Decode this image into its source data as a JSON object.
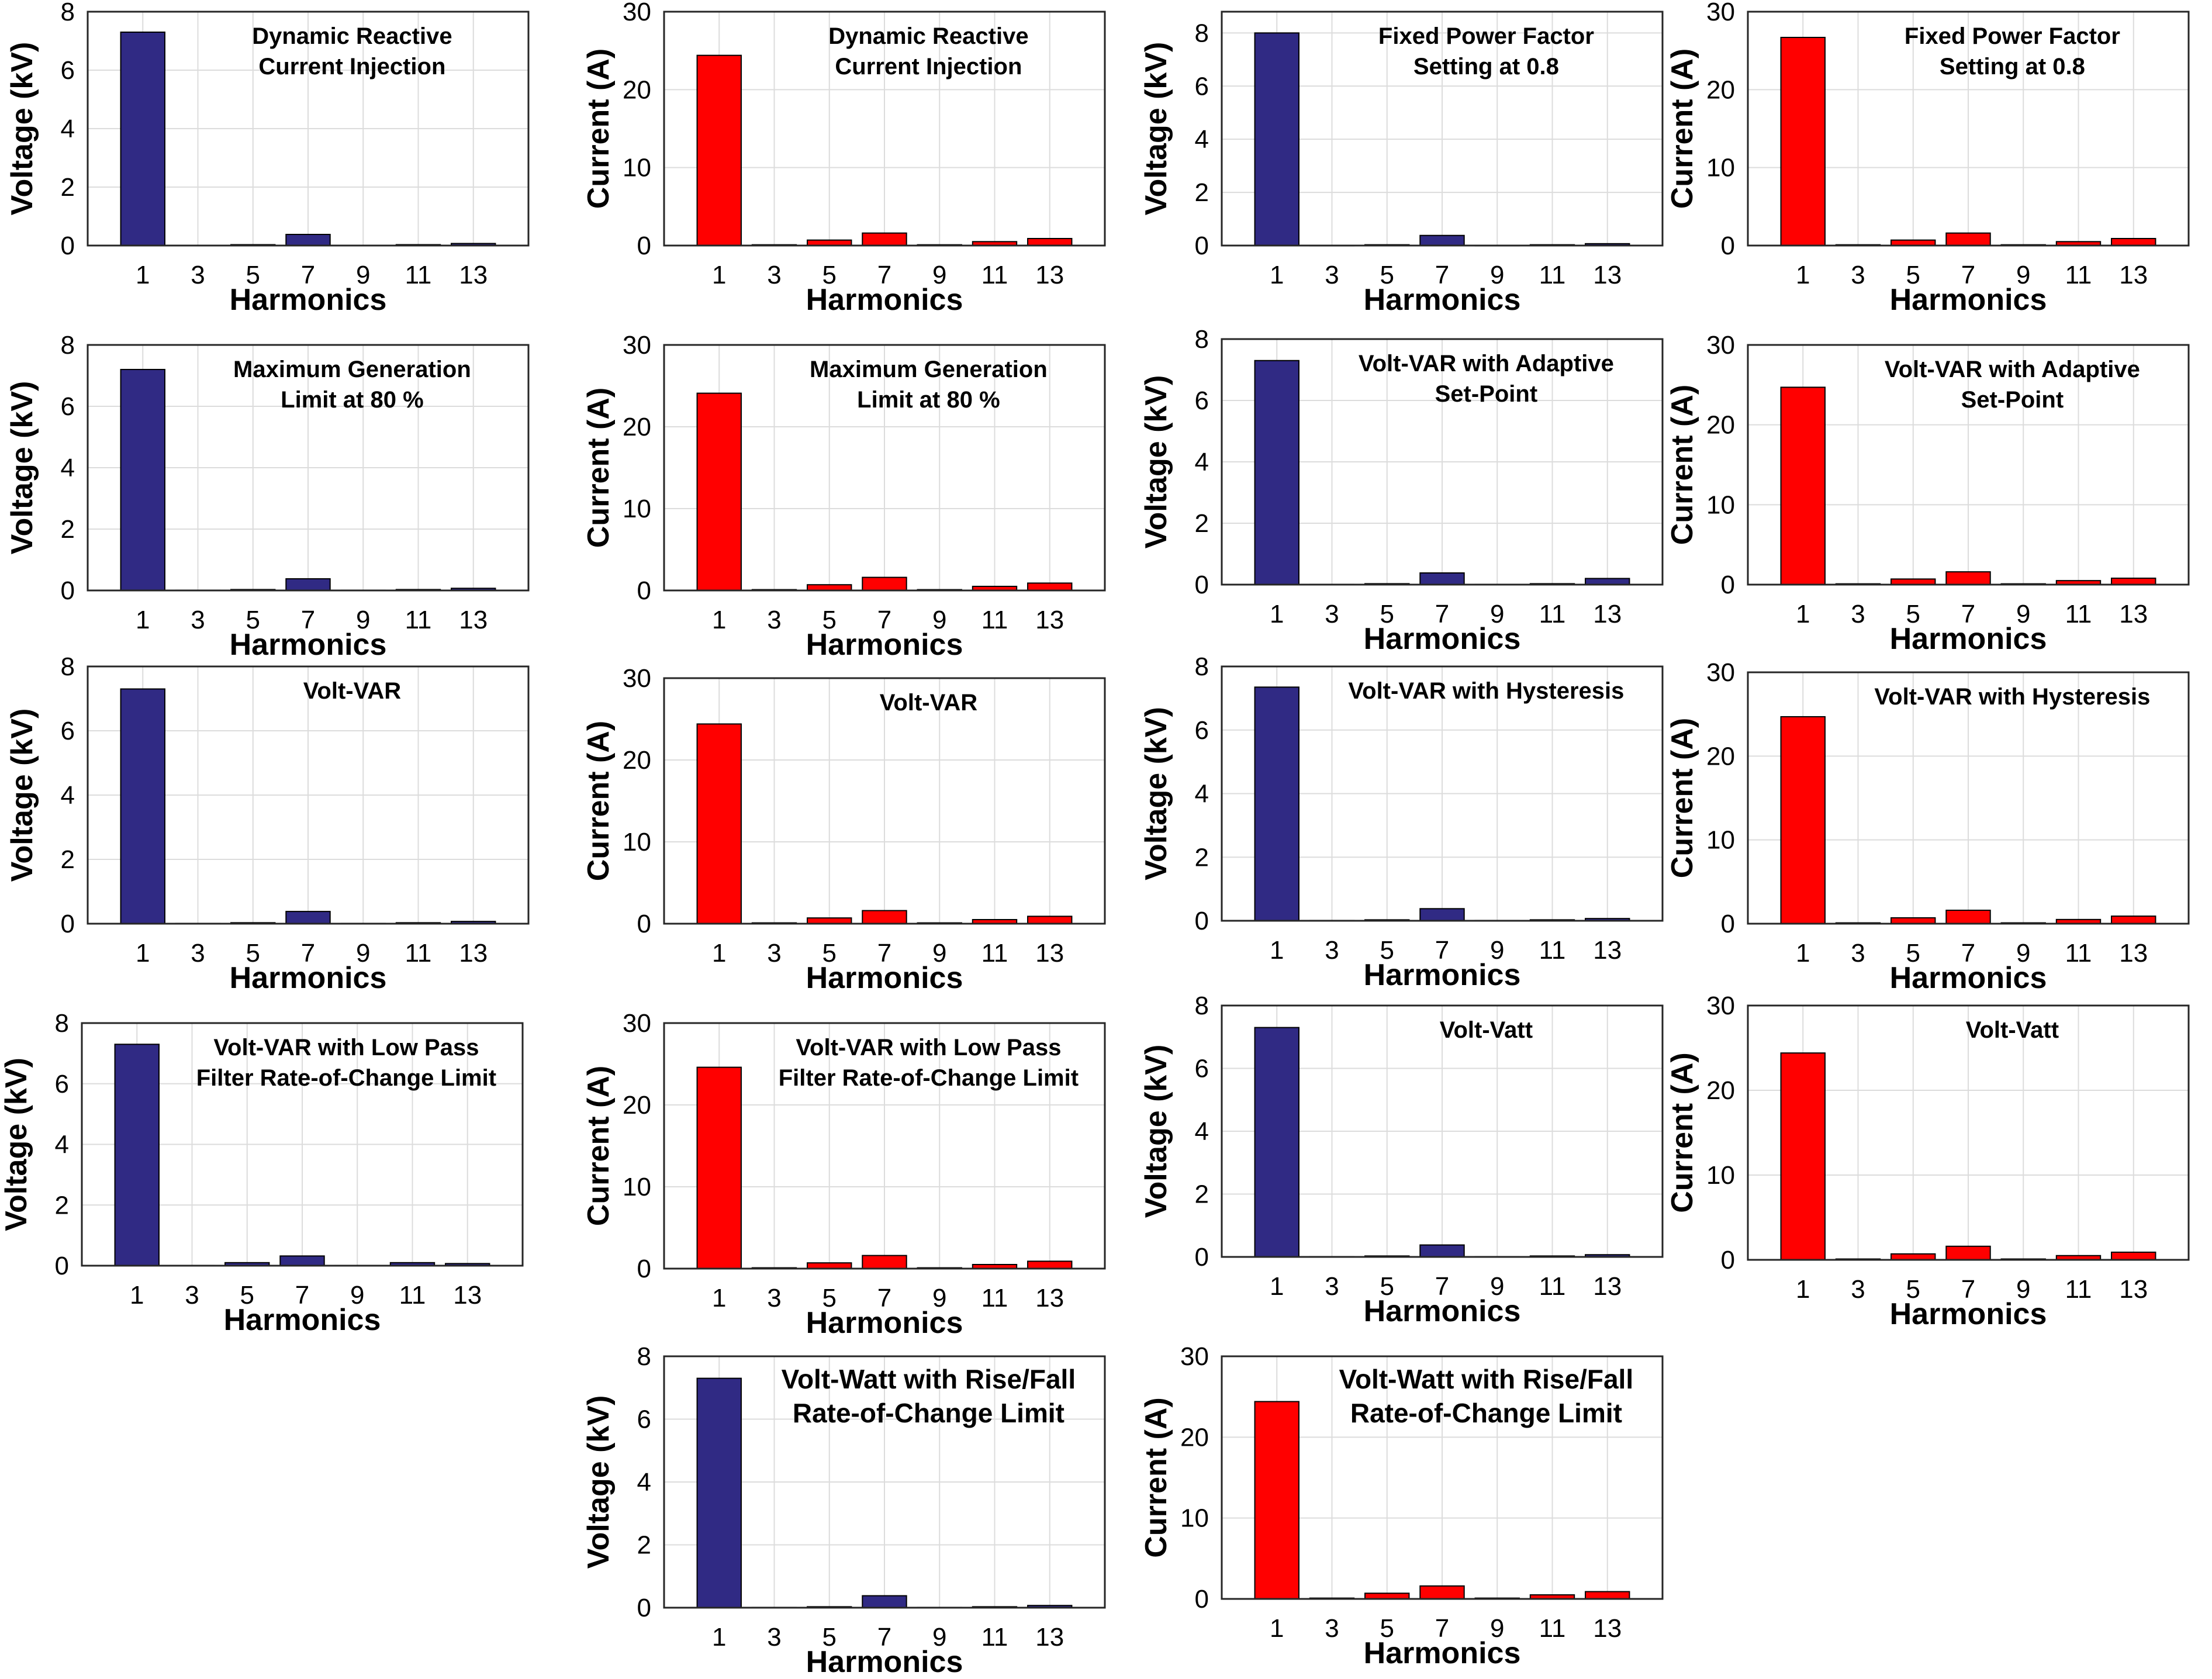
{
  "colors": {
    "voltage_bar": "#302A84",
    "current_bar": "#FF0000",
    "bar_edge": "#000000",
    "grid": "#dcdcdc",
    "axis": "#262626"
  },
  "chart_data": [
    {
      "type": "bar",
      "series_kind": "voltage",
      "title_lines": [
        "Dynamic Reactive",
        "Current Injection"
      ],
      "xlabel": "Harmonics",
      "ylabel": "Voltage (kV)",
      "categories": [
        "1",
        "3",
        "5",
        "7",
        "9",
        "11",
        "13"
      ],
      "values": [
        7.3,
        0.01,
        0.03,
        0.38,
        0.01,
        0.03,
        0.07
      ],
      "ylim": [
        0,
        8
      ],
      "yticks": [
        "0",
        "2",
        "4",
        "6",
        "8"
      ],
      "grid": true
    },
    {
      "type": "bar",
      "series_kind": "current",
      "title_lines": [
        "Dynamic Reactive",
        "Current Injection"
      ],
      "xlabel": "Harmonics",
      "ylabel": "Current (A)",
      "categories": [
        "1",
        "3",
        "5",
        "7",
        "9",
        "11",
        "13"
      ],
      "values": [
        24.4,
        0.1,
        0.7,
        1.6,
        0.1,
        0.5,
        0.9
      ],
      "ylim": [
        0,
        30
      ],
      "yticks": [
        "0",
        "10",
        "20",
        "30"
      ],
      "grid": true
    },
    {
      "type": "bar",
      "series_kind": "voltage",
      "title_lines": [
        "Fixed Power Factor",
        "Setting at 0.8"
      ],
      "xlabel": "Harmonics",
      "ylabel": "Voltage (kV)",
      "categories": [
        "1",
        "3",
        "5",
        "7",
        "9",
        "11",
        "13"
      ],
      "values": [
        8.0,
        0.01,
        0.03,
        0.38,
        0.01,
        0.03,
        0.07
      ],
      "ylim": [
        0,
        8.8
      ],
      "yticks": [
        "0",
        "2",
        "4",
        "6",
        "8"
      ],
      "grid": true
    },
    {
      "type": "bar",
      "series_kind": "current",
      "title_lines": [
        "Fixed Power Factor",
        "Setting at 0.8"
      ],
      "xlabel": "Harmonics",
      "ylabel": "Current (A)",
      "categories": [
        "1",
        "3",
        "5",
        "7",
        "9",
        "11",
        "13"
      ],
      "values": [
        26.7,
        0.1,
        0.7,
        1.6,
        0.1,
        0.5,
        0.9
      ],
      "ylim": [
        0,
        30
      ],
      "yticks": [
        "0",
        "10",
        "20",
        "30"
      ],
      "grid": true
    },
    {
      "type": "bar",
      "series_kind": "voltage",
      "title_lines": [
        "Maximum Generation",
        "Limit at 80 %"
      ],
      "xlabel": "Harmonics",
      "ylabel": "Voltage (kV)",
      "categories": [
        "1",
        "3",
        "5",
        "7",
        "9",
        "11",
        "13"
      ],
      "values": [
        7.2,
        0.01,
        0.03,
        0.38,
        0.01,
        0.03,
        0.07
      ],
      "ylim": [
        0,
        8
      ],
      "yticks": [
        "0",
        "2",
        "4",
        "6",
        "8"
      ],
      "grid": true
    },
    {
      "type": "bar",
      "series_kind": "current",
      "title_lines": [
        "Maximum Generation",
        "Limit at 80 %"
      ],
      "xlabel": "Harmonics",
      "ylabel": "Current (A)",
      "categories": [
        "1",
        "3",
        "5",
        "7",
        "9",
        "11",
        "13"
      ],
      "values": [
        24.1,
        0.1,
        0.7,
        1.6,
        0.1,
        0.5,
        0.9
      ],
      "ylim": [
        0,
        30
      ],
      "yticks": [
        "0",
        "10",
        "20",
        "30"
      ],
      "grid": true
    },
    {
      "type": "bar",
      "series_kind": "voltage",
      "title_lines": [
        "Volt-VAR with Adaptive",
        "Set-Point"
      ],
      "xlabel": "Harmonics",
      "ylabel": "Voltage (kV)",
      "categories": [
        "1",
        "3",
        "5",
        "7",
        "9",
        "11",
        "13"
      ],
      "values": [
        7.3,
        0.01,
        0.03,
        0.38,
        0.01,
        0.03,
        0.2
      ],
      "ylim": [
        0,
        8
      ],
      "yticks": [
        "0",
        "2",
        "4",
        "6",
        "8"
      ],
      "grid": true
    },
    {
      "type": "bar",
      "series_kind": "current",
      "title_lines": [
        "Volt-VAR with Adaptive",
        "Set-Point"
      ],
      "xlabel": "Harmonics",
      "ylabel": "Current (A)",
      "categories": [
        "1",
        "3",
        "5",
        "7",
        "9",
        "11",
        "13"
      ],
      "values": [
        24.7,
        0.1,
        0.7,
        1.6,
        0.1,
        0.5,
        0.8
      ],
      "ylim": [
        0,
        30
      ],
      "yticks": [
        "0",
        "10",
        "20",
        "30"
      ],
      "grid": true
    },
    {
      "type": "bar",
      "series_kind": "voltage",
      "title_lines": [
        "Volt-VAR"
      ],
      "xlabel": "Harmonics",
      "ylabel": "Voltage (kV)",
      "categories": [
        "1",
        "3",
        "5",
        "7",
        "9",
        "11",
        "13"
      ],
      "values": [
        7.3,
        0.01,
        0.03,
        0.38,
        0.01,
        0.03,
        0.07
      ],
      "ylim": [
        0,
        8
      ],
      "yticks": [
        "0",
        "2",
        "4",
        "6",
        "8"
      ],
      "grid": true
    },
    {
      "type": "bar",
      "series_kind": "current",
      "title_lines": [
        "Volt-VAR"
      ],
      "xlabel": "Harmonics",
      "ylabel": "Current (A)",
      "categories": [
        "1",
        "3",
        "5",
        "7",
        "9",
        "11",
        "13"
      ],
      "values": [
        24.4,
        0.1,
        0.7,
        1.6,
        0.1,
        0.5,
        0.9
      ],
      "ylim": [
        0,
        30
      ],
      "yticks": [
        "0",
        "10",
        "20",
        "30"
      ],
      "grid": true
    },
    {
      "type": "bar",
      "series_kind": "voltage",
      "title_lines": [
        "Volt-VAR with Hysteresis"
      ],
      "xlabel": "Harmonics",
      "ylabel": "Voltage (kV)",
      "categories": [
        "1",
        "3",
        "5",
        "7",
        "9",
        "11",
        "13"
      ],
      "values": [
        7.35,
        0.01,
        0.03,
        0.38,
        0.01,
        0.03,
        0.07
      ],
      "ylim": [
        0,
        8
      ],
      "yticks": [
        "0",
        "2",
        "4",
        "6",
        "8"
      ],
      "grid": true
    },
    {
      "type": "bar",
      "series_kind": "current",
      "title_lines": [
        "Volt-VAR with Hysteresis"
      ],
      "xlabel": "Harmonics",
      "ylabel": "Current (A)",
      "categories": [
        "1",
        "3",
        "5",
        "7",
        "9",
        "11",
        "13"
      ],
      "values": [
        24.7,
        0.1,
        0.7,
        1.6,
        0.1,
        0.5,
        0.9
      ],
      "ylim": [
        0,
        30
      ],
      "yticks": [
        "0",
        "10",
        "20",
        "30"
      ],
      "grid": true
    },
    {
      "type": "bar",
      "series_kind": "voltage",
      "title_lines": [
        "Volt-VAR with Low Pass",
        "Filter Rate-of-Change Limit"
      ],
      "xlabel": "Harmonics",
      "ylabel": "Voltage (kV)",
      "categories": [
        "1",
        "3",
        "5",
        "7",
        "9",
        "11",
        "13"
      ],
      "values": [
        7.3,
        0.01,
        0.1,
        0.32,
        0.01,
        0.1,
        0.07
      ],
      "ylim": [
        0,
        8
      ],
      "yticks": [
        "0",
        "2",
        "4",
        "6",
        "8"
      ],
      "grid": true
    },
    {
      "type": "bar",
      "series_kind": "current",
      "title_lines": [
        "Volt-VAR with Low Pass",
        "Filter Rate-of-Change Limit"
      ],
      "xlabel": "Harmonics",
      "ylabel": "Current (A)",
      "categories": [
        "1",
        "3",
        "5",
        "7",
        "9",
        "11",
        "13"
      ],
      "values": [
        24.6,
        0.1,
        0.7,
        1.6,
        0.1,
        0.5,
        0.9
      ],
      "ylim": [
        0,
        30
      ],
      "yticks": [
        "0",
        "10",
        "20",
        "30"
      ],
      "grid": true
    },
    {
      "type": "bar",
      "series_kind": "voltage",
      "title_lines": [
        "Volt-Vatt"
      ],
      "xlabel": "Harmonics",
      "ylabel": "Voltage (kV)",
      "categories": [
        "1",
        "3",
        "5",
        "7",
        "9",
        "11",
        "13"
      ],
      "values": [
        7.3,
        0.01,
        0.03,
        0.38,
        0.01,
        0.03,
        0.07
      ],
      "ylim": [
        0,
        8
      ],
      "yticks": [
        "0",
        "2",
        "4",
        "6",
        "8"
      ],
      "grid": true
    },
    {
      "type": "bar",
      "series_kind": "current",
      "title_lines": [
        "Volt-Vatt"
      ],
      "xlabel": "Harmonics",
      "ylabel": "Current (A)",
      "categories": [
        "1",
        "3",
        "5",
        "7",
        "9",
        "11",
        "13"
      ],
      "values": [
        24.4,
        0.1,
        0.7,
        1.6,
        0.1,
        0.5,
        0.9
      ],
      "ylim": [
        0,
        30
      ],
      "yticks": [
        "0",
        "10",
        "20",
        "30"
      ],
      "grid": true
    },
    {
      "type": "bar",
      "series_kind": "voltage",
      "title_lines": [
        "Volt-Watt with Rise/Fall",
        "Rate-of-Change Limit"
      ],
      "xlabel": "Harmonics",
      "ylabel": "Voltage (kV)",
      "categories": [
        "1",
        "3",
        "5",
        "7",
        "9",
        "11",
        "13"
      ],
      "values": [
        7.3,
        0.01,
        0.03,
        0.38,
        0.01,
        0.03,
        0.07
      ],
      "ylim": [
        0,
        8
      ],
      "yticks": [
        "0",
        "2",
        "4",
        "6",
        "8"
      ],
      "grid": true
    },
    {
      "type": "bar",
      "series_kind": "current",
      "title_lines": [
        "Volt-Watt with Rise/Fall",
        "Rate-of-Change Limit"
      ],
      "xlabel": "Harmonics",
      "ylabel": "Current (A)",
      "categories": [
        "1",
        "3",
        "5",
        "7",
        "9",
        "11",
        "13"
      ],
      "values": [
        24.4,
        0.1,
        0.7,
        1.6,
        0.1,
        0.5,
        0.9
      ],
      "ylim": [
        0,
        30
      ],
      "yticks": [
        "0",
        "10",
        "20",
        "30"
      ],
      "grid": true
    }
  ]
}
